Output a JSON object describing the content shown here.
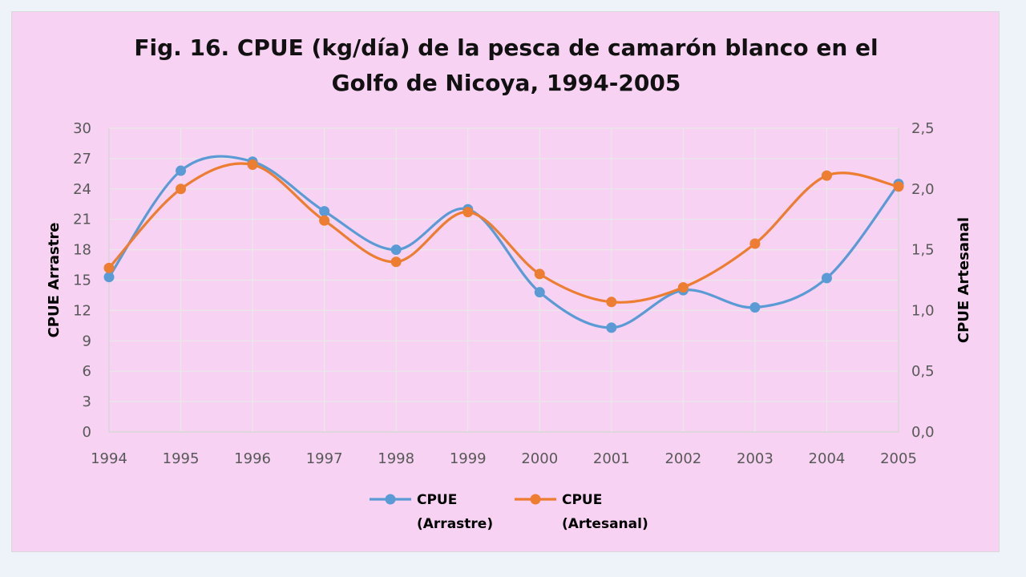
{
  "chart_data": {
    "type": "line",
    "title_line1": "Fig. 16. CPUE (kg/día) de la pesca de camarón blanco en el",
    "title_line2": "Golfo de Nicoya, 1994-2005",
    "ylabel": "CPUE Arrastre",
    "y2label": "CPUE Artesanal",
    "x": [
      "1994",
      "1995",
      "1996",
      "1997",
      "1998",
      "1999",
      "2000",
      "2001",
      "2002",
      "2003",
      "2004",
      "2005"
    ],
    "ylim": [
      0,
      30
    ],
    "y2lim": [
      0,
      2.5
    ],
    "y_ticks": [
      "0",
      "3",
      "6",
      "9",
      "12",
      "15",
      "18",
      "21",
      "24",
      "27",
      "30"
    ],
    "y2_ticks": [
      "0,0",
      "0,5",
      "1,0",
      "1,5",
      "2,0",
      "2,5"
    ],
    "grid": true,
    "legend_position": "bottom",
    "series": [
      {
        "name_line1": "CPUE",
        "name_line2": "(Arrastre)",
        "axis": "left",
        "color": "#5b9bd5",
        "values": [
          15.3,
          25.8,
          26.7,
          21.8,
          18.0,
          22.0,
          13.8,
          10.3,
          14.0,
          12.3,
          15.2,
          24.5
        ]
      },
      {
        "name_line1": "CPUE",
        "name_line2": "(Artesanal)",
        "axis": "right",
        "color": "#ed7d31",
        "values": [
          1.35,
          2.0,
          2.2,
          1.74,
          1.4,
          1.81,
          1.3,
          1.07,
          1.19,
          1.55,
          2.11,
          2.02
        ]
      }
    ]
  }
}
